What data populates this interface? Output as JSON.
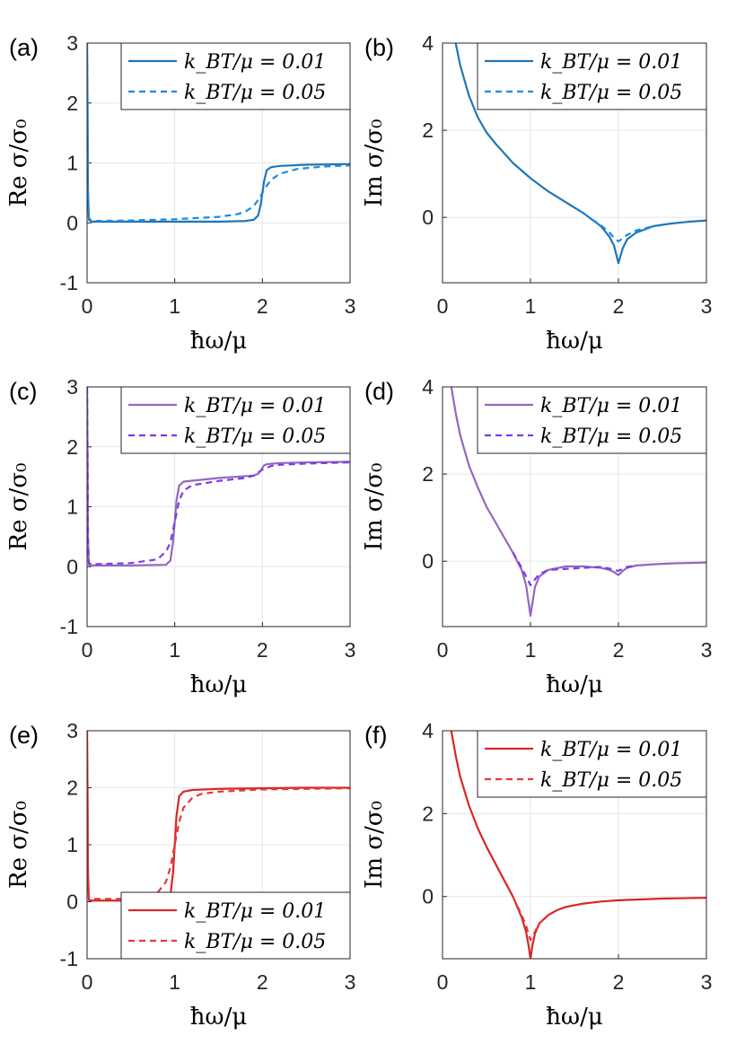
{
  "chart_data": [
    {
      "panel_label": "(a)",
      "type": "line",
      "xlabel": "ħω/μ",
      "ylabel": "Re σ/σ₀",
      "xlim": [
        0,
        3
      ],
      "ylim": [
        -1,
        3
      ],
      "xticks": [
        "0",
        "1",
        "2",
        "3"
      ],
      "yticks": [
        "-1",
        "0",
        "1",
        "2",
        "3"
      ],
      "legend_position": "top-right",
      "grid": true,
      "series": [
        {
          "name": "k_BT/μ = 0.01",
          "style": "solid",
          "color": "#1f77b4",
          "x": [
            0,
            0.005,
            0.01,
            0.02,
            0.05,
            0.5,
            1.0,
            1.5,
            1.8,
            1.9,
            1.95,
            1.98,
            2.0,
            2.02,
            2.05,
            2.1,
            2.2,
            2.5,
            3.0
          ],
          "y": [
            3.0,
            2.0,
            0.5,
            0.05,
            0.02,
            0.02,
            0.02,
            0.02,
            0.03,
            0.05,
            0.12,
            0.3,
            0.5,
            0.7,
            0.88,
            0.93,
            0.95,
            0.97,
            0.98
          ]
        },
        {
          "name": "k_BT/μ = 0.05",
          "style": "dashed",
          "color": "#1e88e5",
          "x": [
            0,
            0.005,
            0.01,
            0.02,
            0.05,
            0.5,
            1.0,
            1.5,
            1.7,
            1.8,
            1.9,
            1.95,
            2.0,
            2.05,
            2.1,
            2.2,
            2.4,
            2.7,
            3.0
          ],
          "y": [
            3.0,
            2.0,
            0.6,
            0.08,
            0.03,
            0.04,
            0.06,
            0.1,
            0.14,
            0.18,
            0.28,
            0.38,
            0.5,
            0.62,
            0.72,
            0.82,
            0.9,
            0.94,
            0.96
          ]
        }
      ]
    },
    {
      "panel_label": "(b)",
      "type": "line",
      "xlabel": "ħω/μ",
      "ylabel": "Im σ/σ₀",
      "xlim": [
        0,
        3
      ],
      "ylim": [
        -1.5,
        4
      ],
      "xticks": [
        "0",
        "1",
        "2",
        "3"
      ],
      "yticks": [
        "0",
        "2",
        "4"
      ],
      "legend_position": "top-right",
      "grid": true,
      "series": [
        {
          "name": "k_BT/μ = 0.01",
          "style": "solid",
          "color": "#1f77b4",
          "x": [
            0.15,
            0.2,
            0.3,
            0.4,
            0.5,
            0.6,
            0.8,
            1.0,
            1.2,
            1.4,
            1.6,
            1.7,
            1.8,
            1.9,
            1.95,
            2.0,
            2.05,
            2.1,
            2.2,
            2.4,
            2.6,
            2.8,
            3.0
          ],
          "y": [
            4.0,
            3.5,
            2.8,
            2.3,
            1.95,
            1.7,
            1.25,
            0.9,
            0.6,
            0.35,
            0.1,
            -0.05,
            -0.2,
            -0.45,
            -0.65,
            -1.05,
            -0.7,
            -0.5,
            -0.35,
            -0.2,
            -0.14,
            -0.1,
            -0.07
          ]
        },
        {
          "name": "k_BT/μ = 0.05",
          "style": "dashed",
          "color": "#1e88e5",
          "x": [
            1.6,
            1.7,
            1.8,
            1.9,
            1.95,
            2.0,
            2.05,
            2.1,
            2.2,
            2.4
          ],
          "y": [
            0.1,
            -0.05,
            -0.18,
            -0.35,
            -0.47,
            -0.55,
            -0.48,
            -0.4,
            -0.3,
            -0.2
          ]
        }
      ]
    },
    {
      "panel_label": "(c)",
      "type": "line",
      "xlabel": "ħω/μ",
      "ylabel": "Re σ/σ₀",
      "xlim": [
        0,
        3
      ],
      "ylim": [
        -1,
        3
      ],
      "xticks": [
        "0",
        "1",
        "2",
        "3"
      ],
      "yticks": [
        "-1",
        "0",
        "1",
        "2",
        "3"
      ],
      "legend_position": "top-right",
      "grid": true,
      "series": [
        {
          "name": "k_BT/μ = 0.01",
          "style": "solid",
          "color": "#9467bd",
          "x": [
            0,
            0.005,
            0.01,
            0.02,
            0.05,
            0.5,
            0.9,
            0.95,
            0.98,
            1.0,
            1.02,
            1.05,
            1.1,
            1.5,
            1.9,
            1.95,
            1.98,
            2.0,
            2.02,
            2.05,
            2.2,
            2.5,
            3.0
          ],
          "y": [
            3.0,
            2.0,
            0.5,
            0.03,
            0.02,
            0.02,
            0.03,
            0.1,
            0.4,
            0.75,
            1.1,
            1.35,
            1.42,
            1.48,
            1.52,
            1.55,
            1.6,
            1.65,
            1.69,
            1.71,
            1.73,
            1.74,
            1.75
          ]
        },
        {
          "name": "k_BT/μ = 0.05",
          "style": "dashed",
          "color": "#7c3aed",
          "x": [
            0,
            0.005,
            0.01,
            0.02,
            0.05,
            0.5,
            0.8,
            0.9,
            0.95,
            1.0,
            1.05,
            1.1,
            1.2,
            1.5,
            1.8,
            1.9,
            2.0,
            2.1,
            2.2,
            2.5,
            3.0
          ],
          "y": [
            3.0,
            2.0,
            0.5,
            0.06,
            0.04,
            0.06,
            0.12,
            0.25,
            0.4,
            0.75,
            1.1,
            1.27,
            1.36,
            1.43,
            1.48,
            1.52,
            1.62,
            1.68,
            1.7,
            1.72,
            1.74
          ]
        }
      ]
    },
    {
      "panel_label": "(d)",
      "type": "line",
      "xlabel": "ħω/μ",
      "ylabel": "Im σ/σ₀",
      "xlim": [
        0,
        3
      ],
      "ylim": [
        -1.5,
        4
      ],
      "xticks": [
        "0",
        "1",
        "2",
        "3"
      ],
      "yticks": [
        "0",
        "2",
        "4"
      ],
      "legend_position": "top-right",
      "grid": true,
      "series": [
        {
          "name": "k_BT/μ = 0.01",
          "style": "solid",
          "color": "#9467bd",
          "x": [
            0.1,
            0.15,
            0.2,
            0.3,
            0.4,
            0.5,
            0.6,
            0.7,
            0.8,
            0.9,
            0.95,
            1.0,
            1.05,
            1.1,
            1.2,
            1.4,
            1.6,
            1.8,
            1.9,
            1.95,
            2.0,
            2.05,
            2.1,
            2.2,
            2.4,
            2.6,
            2.8,
            3.0
          ],
          "y": [
            4.0,
            3.4,
            2.9,
            2.2,
            1.7,
            1.25,
            0.9,
            0.55,
            0.2,
            -0.2,
            -0.55,
            -1.25,
            -0.6,
            -0.35,
            -0.2,
            -0.12,
            -0.12,
            -0.15,
            -0.2,
            -0.25,
            -0.32,
            -0.22,
            -0.15,
            -0.1,
            -0.07,
            -0.05,
            -0.04,
            -0.03
          ]
        },
        {
          "name": "k_BT/μ = 0.05",
          "style": "dashed",
          "color": "#7c3aed",
          "x": [
            0.8,
            0.9,
            0.95,
            1.0,
            1.05,
            1.1,
            1.2,
            1.8,
            1.9,
            1.95,
            2.0,
            2.05,
            2.1,
            2.2
          ],
          "y": [
            0.2,
            -0.15,
            -0.35,
            -0.55,
            -0.42,
            -0.3,
            -0.2,
            -0.13,
            -0.17,
            -0.2,
            -0.22,
            -0.17,
            -0.13,
            -0.1
          ]
        }
      ]
    },
    {
      "panel_label": "(e)",
      "type": "line",
      "xlabel": "ħω/μ",
      "ylabel": "Re σ/σ₀",
      "xlim": [
        0,
        3
      ],
      "ylim": [
        -1,
        3
      ],
      "xticks": [
        "0",
        "1",
        "2",
        "3"
      ],
      "yticks": [
        "-1",
        "0",
        "1",
        "2",
        "3"
      ],
      "legend_position": "bottom-right",
      "grid": true,
      "series": [
        {
          "name": "k_BT/μ = 0.01",
          "style": "solid",
          "color": "#d62728",
          "x": [
            0,
            0.005,
            0.01,
            0.02,
            0.05,
            0.5,
            0.9,
            0.95,
            0.98,
            1.0,
            1.02,
            1.05,
            1.1,
            1.2,
            1.5,
            2.0,
            2.5,
            3.0
          ],
          "y": [
            3.0,
            2.0,
            0.5,
            0.03,
            0.02,
            0.02,
            0.03,
            0.1,
            0.5,
            1.0,
            1.5,
            1.85,
            1.93,
            1.96,
            1.98,
            1.99,
            2.0,
            2.0
          ]
        },
        {
          "name": "k_BT/μ = 0.05",
          "style": "dashed",
          "color": "#e53935",
          "x": [
            0,
            0.005,
            0.01,
            0.02,
            0.05,
            0.5,
            0.7,
            0.8,
            0.9,
            0.95,
            1.0,
            1.05,
            1.1,
            1.2,
            1.3,
            1.5,
            2.0,
            2.5,
            3.0
          ],
          "y": [
            3.0,
            2.0,
            0.6,
            0.08,
            0.05,
            0.05,
            0.08,
            0.15,
            0.35,
            0.6,
            1.0,
            1.4,
            1.65,
            1.82,
            1.89,
            1.93,
            1.97,
            1.98,
            1.99
          ]
        }
      ]
    },
    {
      "panel_label": "(f)",
      "type": "line",
      "xlabel": "ħω/μ",
      "ylabel": "Im σ/σ₀",
      "xlim": [
        0,
        3
      ],
      "ylim": [
        -1.5,
        4
      ],
      "xticks": [
        "0",
        "1",
        "2",
        "3"
      ],
      "yticks": [
        "0",
        "2",
        "4"
      ],
      "legend_position": "top-right",
      "grid": true,
      "series": [
        {
          "name": "k_BT/μ = 0.01",
          "style": "solid",
          "color": "#d62728",
          "x": [
            0.1,
            0.15,
            0.2,
            0.3,
            0.4,
            0.5,
            0.6,
            0.7,
            0.8,
            0.9,
            0.95,
            0.98,
            1.0,
            1.02,
            1.05,
            1.1,
            1.2,
            1.3,
            1.4,
            1.6,
            1.8,
            2.0,
            2.5,
            3.0
          ],
          "y": [
            4.0,
            3.4,
            2.9,
            2.2,
            1.65,
            1.2,
            0.8,
            0.4,
            0.0,
            -0.5,
            -0.85,
            -1.2,
            -1.5,
            -1.2,
            -0.9,
            -0.65,
            -0.45,
            -0.33,
            -0.25,
            -0.17,
            -0.12,
            -0.09,
            -0.05,
            -0.03
          ]
        },
        {
          "name": "k_BT/μ = 0.05",
          "style": "dashed",
          "color": "#e53935",
          "x": [
            0.8,
            0.9,
            0.95,
            1.0,
            1.05,
            1.1,
            1.2,
            1.3
          ],
          "y": [
            0.0,
            -0.45,
            -0.7,
            -1.05,
            -0.85,
            -0.65,
            -0.45,
            -0.33
          ]
        }
      ]
    }
  ]
}
